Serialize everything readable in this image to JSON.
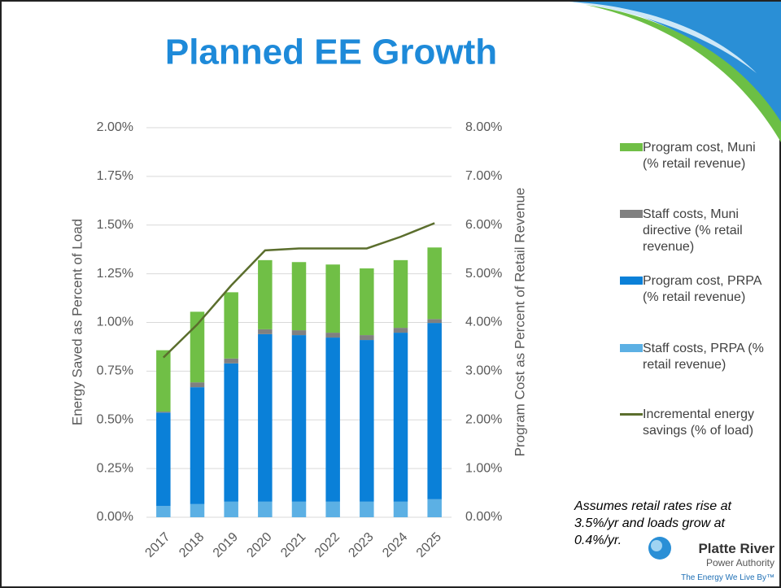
{
  "chart_data": {
    "type": "bar",
    "title": "Planned EE Growth",
    "categories": [
      "2017",
      "2018",
      "2019",
      "2020",
      "2021",
      "2022",
      "2023",
      "2024",
      "2025"
    ],
    "ylabel": "Energy Saved as Percent of Load",
    "y2label": "Program Cost as Percent of Retail Revenue",
    "ylim": [
      0,
      2
    ],
    "yticks": [
      {
        "value": 0,
        "label": "0.00%"
      },
      {
        "value": 0.25,
        "label": "0.25%"
      },
      {
        "value": 0.5,
        "label": "0.50%"
      },
      {
        "value": 0.75,
        "label": "0.75%"
      },
      {
        "value": 1,
        "label": "1.00%"
      },
      {
        "value": 1.25,
        "label": "1.25%"
      },
      {
        "value": 1.5,
        "label": "1.50%"
      },
      {
        "value": 1.75,
        "label": "1.75%"
      },
      {
        "value": 2,
        "label": "2.00%"
      }
    ],
    "y2lim": [
      0,
      8
    ],
    "y2ticks": [
      {
        "value": 0,
        "label": "0.00%"
      },
      {
        "value": 1,
        "label": "1.00%"
      },
      {
        "value": 2,
        "label": "2.00%"
      },
      {
        "value": 3,
        "label": "3.00%"
      },
      {
        "value": 4,
        "label": "4.00%"
      },
      {
        "value": 5,
        "label": "5.00%"
      },
      {
        "value": 6,
        "label": "6.00%"
      },
      {
        "value": 7,
        "label": "7.00%"
      },
      {
        "value": 8,
        "label": "8.00%"
      }
    ],
    "grid": true,
    "stacked": true,
    "series": [
      {
        "name": "Program cost, Muni (% retail revenue)",
        "type": "bar",
        "axis": "y2",
        "color": "#70bf46",
        "values": [
          1.26,
          1.45,
          1.36,
          1.42,
          1.4,
          1.4,
          1.37,
          1.39,
          1.47
        ]
      },
      {
        "name": "Staff costs, Muni directive (% retail revenue)",
        "type": "bar",
        "axis": "y2",
        "color": "#808080",
        "values": [
          0.02,
          0.1,
          0.1,
          0.1,
          0.1,
          0.1,
          0.1,
          0.1,
          0.08
        ]
      },
      {
        "name": "Program cost, PRPA (% retail revenue)",
        "type": "bar",
        "axis": "y2",
        "color": "#0a80d8",
        "values": [
          1.92,
          2.4,
          2.84,
          3.44,
          3.42,
          3.37,
          3.32,
          3.47,
          3.62
        ]
      },
      {
        "name": "Staff costs, PRPA (% retail revenue)",
        "type": "bar",
        "axis": "y2",
        "color": "#5cb0e4",
        "values": [
          0.23,
          0.27,
          0.32,
          0.32,
          0.32,
          0.32,
          0.32,
          0.32,
          0.37
        ]
      },
      {
        "name": "Incremental energy savings (% of load)",
        "type": "line",
        "axis": "y",
        "color": "#5b6e2d",
        "values": [
          0.82,
          0.99,
          1.19,
          1.37,
          1.38,
          1.38,
          1.38,
          1.44,
          1.51
        ]
      }
    ],
    "note": "Assumes retail rates rise at 3.5%/yr and loads grow at 0.4%/yr.",
    "logo": {
      "name": "Platte River",
      "subtitle": "Power Authority",
      "tagline": "The Energy We Live By™"
    }
  }
}
